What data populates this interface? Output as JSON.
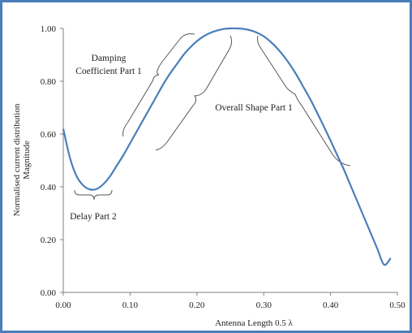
{
  "chart_data": {
    "type": "line",
    "title": "",
    "xlabel": "Antenna Length 0.5 λ",
    "ylabel_lines": [
      "Normalised current distribution",
      "Magnitude"
    ],
    "xlim": [
      0,
      0.5
    ],
    "ylim": [
      0,
      1.0
    ],
    "x_ticks": [
      "0.00",
      "0.10",
      "0.20",
      "0.30",
      "0.40",
      "0.50"
    ],
    "y_ticks": [
      "0.00",
      "0.20",
      "0.40",
      "0.60",
      "0.80",
      "1.00"
    ],
    "grid": false,
    "legend": "none",
    "series": [
      {
        "color": "#4a7ebb",
        "x": [
          0.0,
          0.01,
          0.02,
          0.03,
          0.04,
          0.05,
          0.06,
          0.07,
          0.08,
          0.09,
          0.1,
          0.11,
          0.12,
          0.13,
          0.14,
          0.15,
          0.16,
          0.17,
          0.18,
          0.19,
          0.2,
          0.21,
          0.22,
          0.23,
          0.24,
          0.25,
          0.26,
          0.27,
          0.28,
          0.29,
          0.3,
          0.31,
          0.32,
          0.33,
          0.34,
          0.35,
          0.36,
          0.37,
          0.38,
          0.39,
          0.4,
          0.41,
          0.42,
          0.43,
          0.44,
          0.45,
          0.46,
          0.47,
          0.48,
          0.49
        ],
        "y": [
          0.62,
          0.51,
          0.44,
          0.405,
          0.39,
          0.392,
          0.41,
          0.44,
          0.48,
          0.52,
          0.565,
          0.61,
          0.655,
          0.7,
          0.745,
          0.79,
          0.83,
          0.865,
          0.9,
          0.928,
          0.952,
          0.97,
          0.983,
          0.992,
          0.998,
          1.0,
          1.0,
          0.998,
          0.993,
          0.984,
          0.97,
          0.95,
          0.925,
          0.895,
          0.86,
          0.82,
          0.775,
          0.73,
          0.68,
          0.628,
          0.575,
          0.52,
          0.465,
          0.405,
          0.345,
          0.285,
          0.225,
          0.165,
          0.105,
          0.13
        ]
      }
    ],
    "annotations": [
      {
        "lines": [
          "Damping",
          "Coefficient Part 1"
        ]
      },
      {
        "lines": [
          "Overall Shape Part 1"
        ]
      },
      {
        "lines": [
          "Delay Part 2"
        ]
      }
    ],
    "colors": {
      "line": "#4a7ebb",
      "frame": "#4a7ebb",
      "axis": "#808080",
      "bracket": "#555555"
    }
  }
}
